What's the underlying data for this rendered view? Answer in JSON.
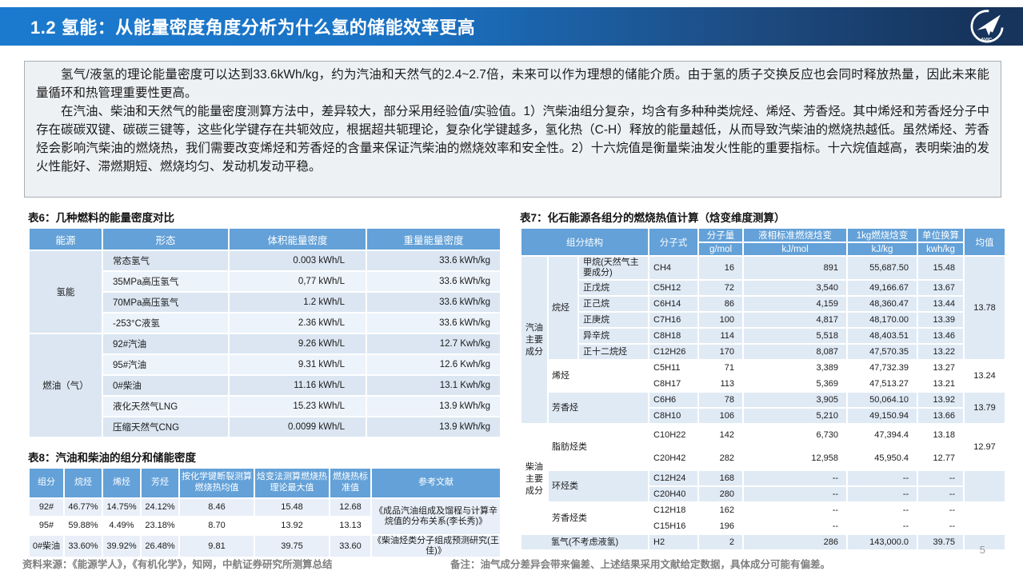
{
  "header": {
    "title": "1.2 氢能：从能量密度角度分析为什么氢的储能效率更高",
    "logo_text": "AVIC",
    "colors": {
      "bar_left": "#1b7ace",
      "bar_right": "#16345c",
      "table_header": "#63a1d8",
      "band_light": "#e0eaf5"
    }
  },
  "intro": {
    "p1": "氢气/液氢的理论能量密度可以达到33.6kWh/kg，约为汽油和天然气的2.4~2.7倍，未来可以作为理想的储能介质。由于氢的质子交换反应也会同时释放热量，因此未来能量循环和热管理重要性更高。",
    "p2": "在汽油、柴油和天然气的能量密度测算方法中，差异较大，部分采用经验值/实验值。1）汽柴油组分复杂，均含有多种种类烷烃、烯烃、芳香烃。其中烯烃和芳香烃分子中存在碳碳双键、碳碳三键等，这些化学键存在共轭效应，根据超共轭理论，复杂化学键越多，氢化热（C-H）释放的能量越低，从而导致汽柴油的燃烧热越低。虽然烯烃、芳香烃会影响汽柴油的燃烧热，我们需要改变烯烃和芳香烃的含量来保证汽柴油的燃烧效率和安全性。2）十六烷值是衡量柴油发火性能的重要指标。十六烷值越高，表明柴油的发火性能好、滞燃期短、燃烧均匀、发动机发动平稳。"
  },
  "table6": {
    "caption": "表6：几种燃料的能量密度对比",
    "headers": [
      "能源",
      "形态",
      "体积能量密度",
      "重量能量密度"
    ],
    "groups": [
      {
        "name": "氢能",
        "rows": [
          [
            "常态氢气",
            "0.003 kWh/L",
            "33.6 kWh/kg"
          ],
          [
            "35MPa高压氢气",
            "0,77 kWh/L",
            "33.6 kWh/kg"
          ],
          [
            "70MPa高压氢气",
            "1.2 kWh/L",
            "33.6 kWh/kg"
          ],
          [
            "-253°C液氢",
            "2.36 kWh/L",
            "33.6 kWh/kg"
          ]
        ]
      },
      {
        "name": "燃油（气）",
        "rows": [
          [
            "92#汽油",
            "9.26 kWh/L",
            "12.7 Kwh/kg"
          ],
          [
            "95#汽油",
            "9.31 kWh/L",
            "12.6 Kwh/kg"
          ],
          [
            "0#柴油",
            "11.16 kWh/L",
            "13.1 Kwh/kg"
          ],
          [
            "液化天然气LNG",
            "15.23 kWh/L",
            "13.9 kWh/kg"
          ],
          [
            "压缩天然气CNG",
            "0.0099 kWh/L",
            "13.9 kWh/kg"
          ]
        ]
      }
    ]
  },
  "table7": {
    "caption": "表7：化石能源各组分的燃烧热值计算（焓变维度测算）",
    "head": {
      "col1": "组分结构",
      "col2": "分子式",
      "metrics": [
        [
          "分子量",
          "g/mol"
        ],
        [
          "液相标准燃烧焓变",
          "kJ/mol"
        ],
        [
          "1kg燃烧焓变",
          "kJ/kg"
        ],
        [
          "单位换算",
          "kwh/kg"
        ]
      ],
      "avg": "均值"
    },
    "sections": [
      {
        "group": "汽油主要成分",
        "subgroups": [
          {
            "name": "烷烃",
            "avg": "13.78",
            "rows": [
              {
                "item": "甲烷(天然气主要成分)",
                "formula": "CH4",
                "mass": "16",
                "dh_mol": "891",
                "dh_kg": "55,687.50",
                "kwh": "15.48",
                "tall": true
              },
              {
                "item": "正戊烷",
                "formula": "C5H12",
                "mass": "72",
                "dh_mol": "3,540",
                "dh_kg": "49,166.67",
                "kwh": "13.67"
              },
              {
                "item": "正己烷",
                "formula": "C6H14",
                "mass": "86",
                "dh_mol": "4,159",
                "dh_kg": "48,360.47",
                "kwh": "13.44"
              },
              {
                "item": "正庚烷",
                "formula": "C7H16",
                "mass": "100",
                "dh_mol": "4,817",
                "dh_kg": "48,170.00",
                "kwh": "13.39"
              },
              {
                "item": "异辛烷",
                "formula": "C8H18",
                "mass": "114",
                "dh_mol": "5,518",
                "dh_kg": "48,403.51",
                "kwh": "13.46"
              },
              {
                "item": "正十二烷烃",
                "formula": "C12H26",
                "mass": "170",
                "dh_mol": "8,087",
                "dh_kg": "47,570.35",
                "kwh": "13.22"
              }
            ]
          },
          {
            "name": "烯烃",
            "avg": "13.24",
            "rows": [
              {
                "formula": "C5H11",
                "mass": "71",
                "dh_mol": "3,389",
                "dh_kg": "47,732.39",
                "kwh": "13.27"
              },
              {
                "formula": "C8H17",
                "mass": "113",
                "dh_mol": "5,369",
                "dh_kg": "47,513.27",
                "kwh": "13.21"
              }
            ]
          },
          {
            "name": "芳香烃",
            "avg": "13.79",
            "rows": [
              {
                "formula": "C6H6",
                "mass": "78",
                "dh_mol": "3,905",
                "dh_kg": "50,064.10",
                "kwh": "13.92"
              },
              {
                "formula": "C8H10",
                "mass": "106",
                "dh_mol": "5,210",
                "dh_kg": "49,150.94",
                "kwh": "13.66"
              }
            ]
          }
        ]
      },
      {
        "group": "柴油主要成分",
        "subgroups": [
          {
            "name": "脂肪烃类",
            "avg": "12.97",
            "rows": [
              {
                "formula": "C10H22",
                "mass": "142",
                "dh_mol": "6,730",
                "dh_kg": "47,394.4",
                "kwh": "13.18",
                "tall": true
              },
              {
                "formula": "C20H42",
                "mass": "282",
                "dh_mol": "12,958",
                "dh_kg": "45,950.4",
                "kwh": "12.77",
                "tall": true
              }
            ]
          },
          {
            "name": "环烃类",
            "avg": "",
            "rows": [
              {
                "formula": "C12H24",
                "mass": "168",
                "dh_mol": "--",
                "dh_kg": "--",
                "kwh": "--"
              },
              {
                "formula": "C20H40",
                "mass": "280",
                "dh_mol": "--",
                "dh_kg": "--",
                "kwh": "--"
              }
            ]
          },
          {
            "name": "芳香烃类",
            "avg": "",
            "rows": [
              {
                "formula": "C12H18",
                "mass": "162",
                "dh_mol": "--",
                "dh_kg": "--",
                "kwh": "--"
              },
              {
                "formula": "C15H16",
                "mass": "196",
                "dh_mol": "--",
                "dh_kg": "--",
                "kwh": "--"
              }
            ]
          }
        ]
      }
    ],
    "hydrogen_row": {
      "label": "氢气(不考虑液氢)",
      "formula": "H2",
      "mass": "2",
      "dh_mol": "286",
      "dh_kg": "143,000.0",
      "kwh": "39.75",
      "avg": ""
    }
  },
  "table8": {
    "caption": "表8：汽油和柴油的组分和储能密度",
    "headers": [
      "组分",
      "烷烃",
      "烯烃",
      "芳烃",
      "按化学键断裂测算燃烧热均值",
      "焓变法测算燃烧热理论最大值",
      "燃烧热标准值",
      "参考文献"
    ],
    "rows": [
      {
        "cells": [
          "92#",
          "46.77%",
          "14.75%",
          "24.12%",
          "8.46",
          "15.48",
          "12.68"
        ],
        "ref": "《成品汽油组成及馏程与计算辛烷值的分布关系(李长秀)》",
        "ref_rowspan": 2,
        "ref_white": true
      },
      {
        "cells": [
          "95#",
          "59.88%",
          "4.49%",
          "23.18%",
          "8.70",
          "13.92",
          "13.13"
        ]
      },
      {
        "cells": [
          "0#柴油",
          "33.60%",
          "39.92%",
          "26.48%",
          "9.81",
          "39.75",
          "33.60"
        ],
        "ref": "《柴油烃类分子组成预测研究(王佳)》",
        "ref_rowspan": 1,
        "ref_white": false
      }
    ]
  },
  "footer": {
    "source": "资料来源：《能源学人》，《有机化学》，知网，中航证券研究所测算总结",
    "note": "备注：油气成分差异会带来偏差、上述结果采用文献给定数据，具体成分可能有偏差。",
    "page": "5"
  }
}
